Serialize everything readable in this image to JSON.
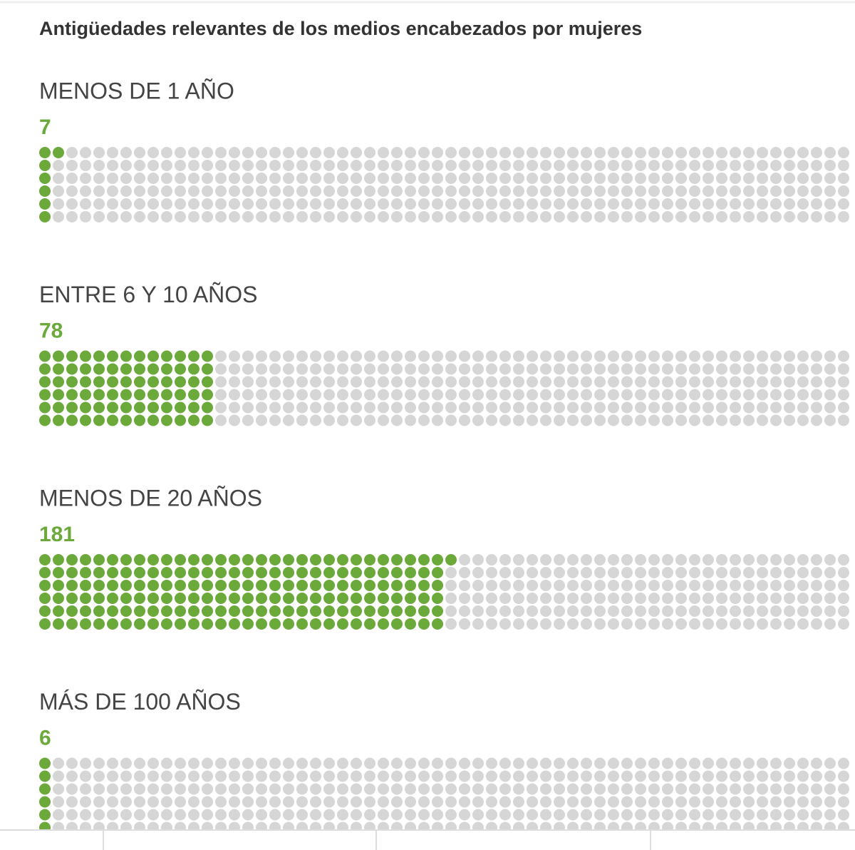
{
  "chart_data": {
    "type": "waffle",
    "title": "Antigüedades relevantes de los medios encabezados por mujeres",
    "categories": [
      "MENOS DE 1 AÑO",
      "ENTRE 6 Y 10 AÑOS",
      "MENOS DE 20 AÑOS",
      "MÁS DE 100 AÑOS"
    ],
    "values": [
      7,
      78,
      181,
      6
    ],
    "total": 360,
    "color": "#6aa93a",
    "empty_color": "#d6d6d6"
  }
}
